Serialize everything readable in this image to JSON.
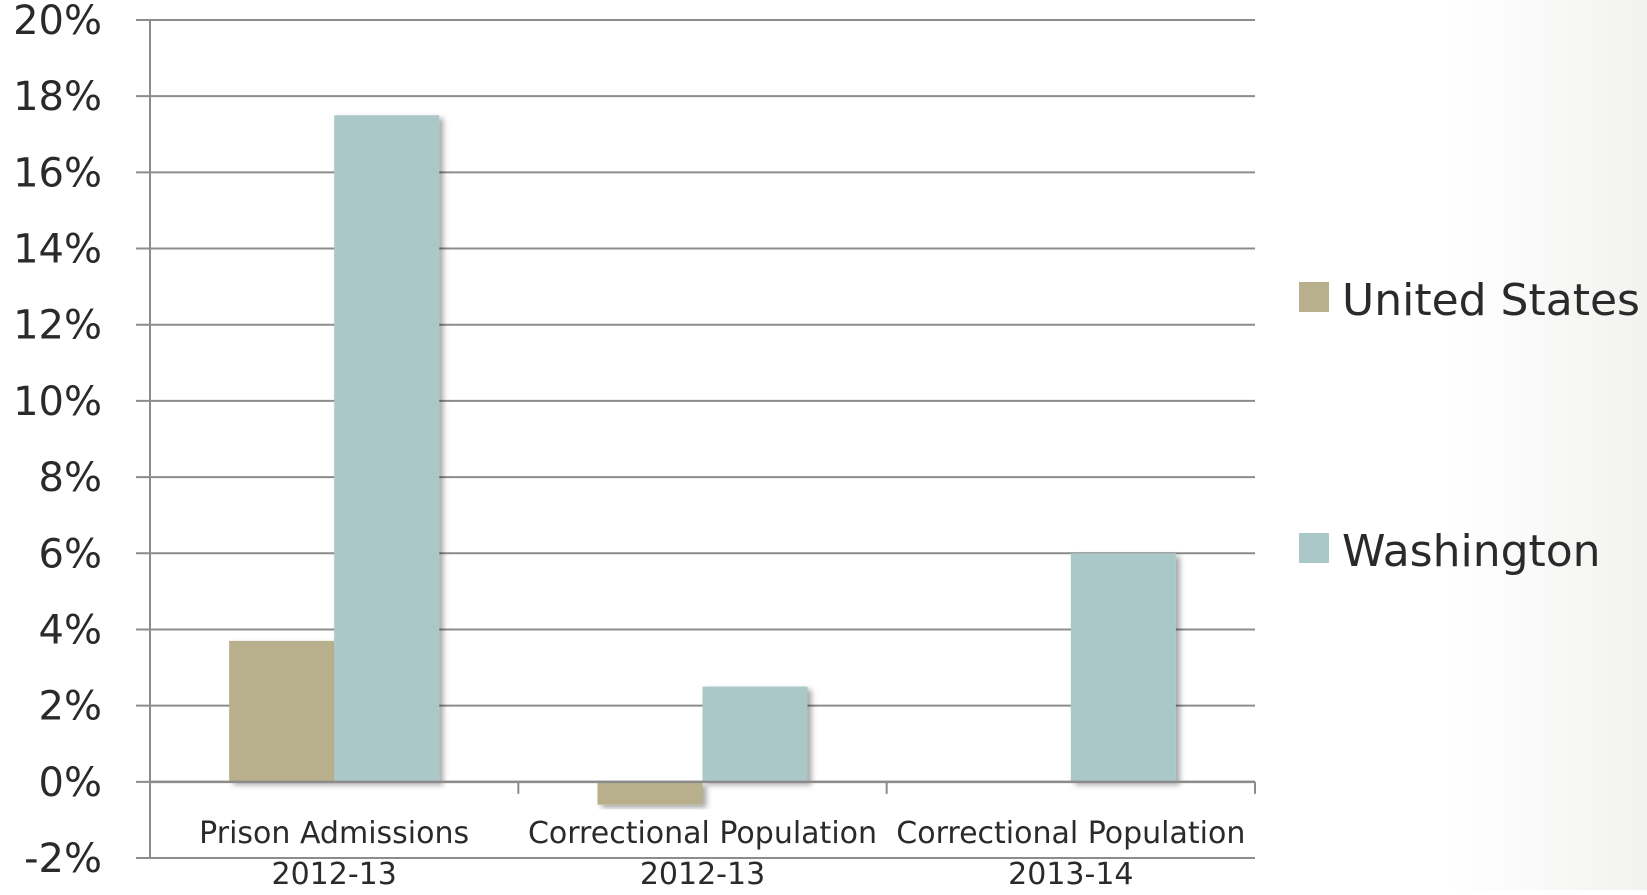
{
  "chart_data": {
    "type": "bar",
    "title": "",
    "xlabel": "",
    "ylabel": "",
    "categories": [
      [
        "Prison Admissions",
        "2012-13"
      ],
      [
        "Correctional Population",
        "2012-13"
      ],
      [
        "Correctional Population",
        "2013-14"
      ]
    ],
    "series": [
      {
        "name": "United States",
        "color": "#b8b08c",
        "values": [
          3.7,
          -0.6,
          0
        ]
      },
      {
        "name": "Washington",
        "color": "#abc8c8",
        "values": [
          17.5,
          2.5,
          6.0
        ]
      }
    ],
    "ylim": [
      -2,
      20
    ],
    "y_tick_step": 2,
    "y_tick_suffix": "%",
    "grid": true,
    "legend_position": "right"
  }
}
